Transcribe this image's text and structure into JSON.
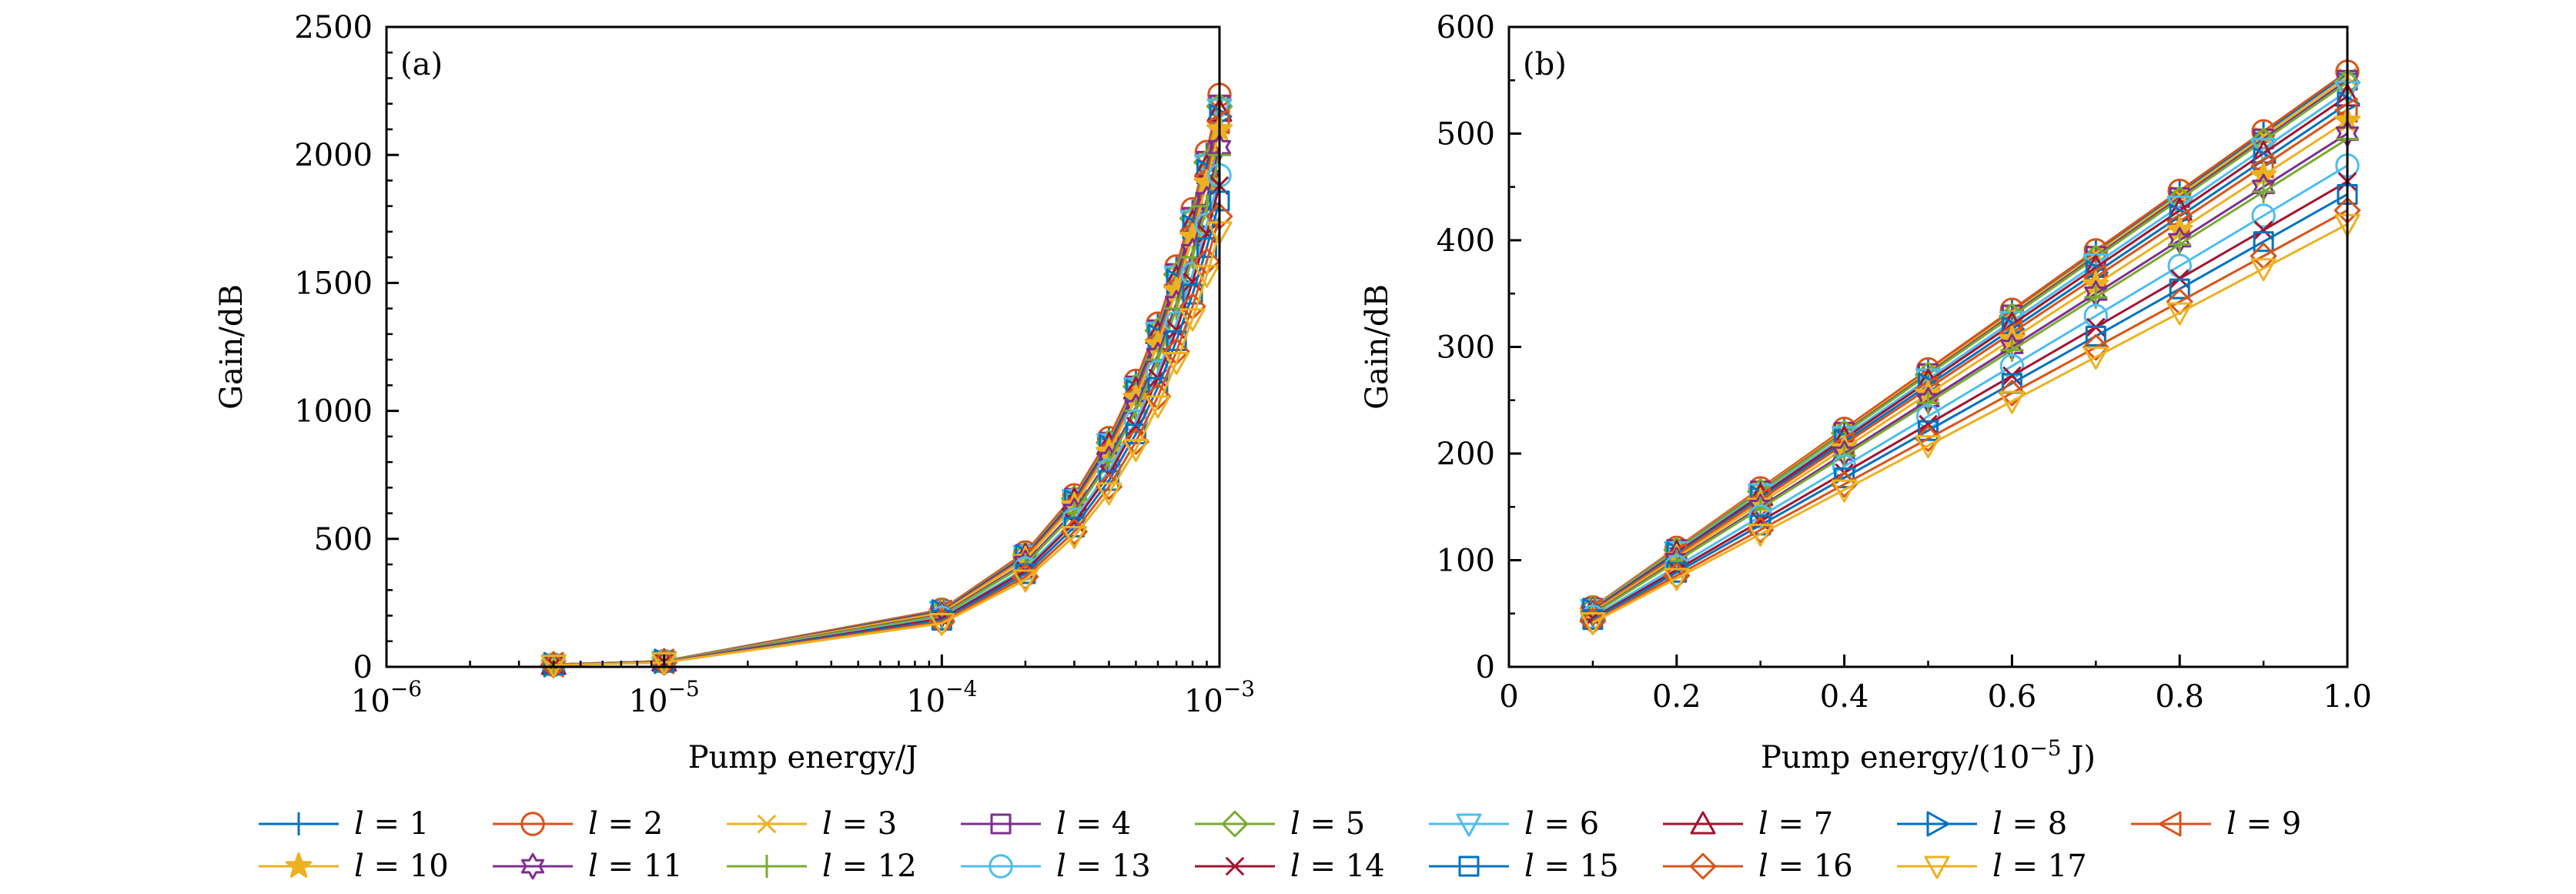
{
  "chart_data": [
    {
      "type": "line",
      "panel_label": "(a)",
      "xlabel": "Pump energy/J",
      "ylabel": "Gain/dB",
      "xscale": "log",
      "xlim": [
        1e-06,
        0.001
      ],
      "ylim": [
        0,
        2500
      ],
      "xticks": [
        {
          "value": 1e-06,
          "base": "10",
          "exp": "−6"
        },
        {
          "value": 1e-05,
          "base": "10",
          "exp": "−5"
        },
        {
          "value": 0.0001,
          "base": "10",
          "exp": "−4"
        },
        {
          "value": 0.001,
          "base": "10",
          "exp": "−3"
        }
      ],
      "yticks": [
        0,
        500,
        1000,
        1500,
        2000,
        2500
      ],
      "ytick_labels": [
        "0",
        "500",
        "1000",
        "1500",
        "2000",
        "2500"
      ],
      "x": [
        4e-06,
        1e-05,
        0.0001,
        0.0002,
        0.0003,
        0.0004,
        0.0005,
        0.0006,
        0.0007,
        0.0008,
        0.0009,
        0.001
      ],
      "series_endpoints": [
        2225,
        2235,
        2200,
        2195,
        2190,
        2180,
        2170,
        2150,
        2130,
        2100,
        2030,
        2000,
        1920,
        1880,
        1820,
        1760,
        1700
      ]
    },
    {
      "type": "line",
      "panel_label": "(b)",
      "xlabel": "Pump energy/(10",
      "xlabel_exp": "−5",
      "xlabel_tail": " J)",
      "ylabel": "Gain/dB",
      "xlim": [
        0,
        1.0
      ],
      "ylim": [
        0,
        600
      ],
      "xticks": [
        0,
        0.2,
        0.4,
        0.6,
        0.8,
        1.0
      ],
      "xtick_labels": [
        "0",
        "0.2",
        "0.4",
        "0.6",
        "0.8",
        "1.0"
      ],
      "yticks": [
        0,
        100,
        200,
        300,
        400,
        500,
        600
      ],
      "ytick_labels": [
        "0",
        "100",
        "200",
        "300",
        "400",
        "500",
        "600"
      ],
      "x": [
        0.1,
        0.2,
        0.3,
        0.4,
        0.5,
        0.6,
        0.7,
        0.8,
        0.9,
        1.0
      ],
      "series_endpoints": [
        556,
        558,
        553,
        550,
        548,
        540,
        535,
        528,
        522,
        512,
        500,
        495,
        470,
        455,
        443,
        428,
        415
      ]
    }
  ],
  "legend": {
    "symbol": "l",
    "equals": "=",
    "items": [
      {
        "num": "1",
        "color": "#0072BD",
        "marker": "plus"
      },
      {
        "num": "2",
        "color": "#D95319",
        "marker": "circle"
      },
      {
        "num": "3",
        "color": "#EDB120",
        "marker": "x"
      },
      {
        "num": "4",
        "color": "#7E2F8E",
        "marker": "square"
      },
      {
        "num": "5",
        "color": "#77AC30",
        "marker": "diamond"
      },
      {
        "num": "6",
        "color": "#4DBEEE",
        "marker": "triangle-down"
      },
      {
        "num": "7",
        "color": "#A2142F",
        "marker": "triangle-up"
      },
      {
        "num": "8",
        "color": "#0072BD",
        "marker": "triangle-right"
      },
      {
        "num": "9",
        "color": "#D95319",
        "marker": "triangle-left"
      },
      {
        "num": "10",
        "color": "#EDB120",
        "marker": "pentagram"
      },
      {
        "num": "11",
        "color": "#7E2F8E",
        "marker": "hexagram"
      },
      {
        "num": "12",
        "color": "#77AC30",
        "marker": "plus"
      },
      {
        "num": "13",
        "color": "#4DBEEE",
        "marker": "circle"
      },
      {
        "num": "14",
        "color": "#A2142F",
        "marker": "x"
      },
      {
        "num": "15",
        "color": "#0072BD",
        "marker": "square"
      },
      {
        "num": "16",
        "color": "#D95319",
        "marker": "diamond"
      },
      {
        "num": "17",
        "color": "#EDB120",
        "marker": "triangle-down"
      }
    ]
  }
}
